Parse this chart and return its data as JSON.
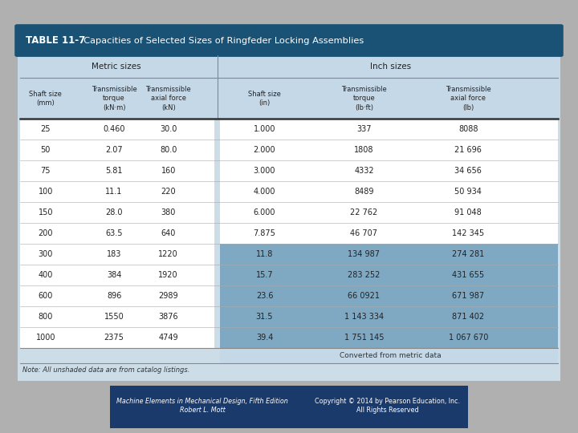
{
  "title_bold": "TABLE 11-7",
  "title_rest": "  Capacities of Selected Sizes of Ringfeder Locking Assemblies",
  "title_bg": "#1a5276",
  "title_text_color": "#ffffff",
  "table_bg": "#cddde8",
  "header_bg": "#c5d8e8",
  "row_bg_white": "#ffffff",
  "shaded_row_bg": "#7fa8c2",
  "metric_header": "Metric sizes",
  "inch_header": "Inch sizes",
  "col_headers_metric": [
    "Shaft size\n(mm)",
    "Transmissible\ntorque\n(kN·m)",
    "Transmissible\naxial force\n(kN)"
  ],
  "col_headers_inch": [
    "Shaft size\n(in)",
    "Transmissible\ntorque\n(lb·ft)",
    "Transmissible\naxial force\n(lb)"
  ],
  "metric_data": [
    [
      "25",
      "0.460",
      "30.0"
    ],
    [
      "50",
      "2.07",
      "80.0"
    ],
    [
      "75",
      "5.81",
      "160"
    ],
    [
      "100",
      "11.1",
      "220"
    ],
    [
      "150",
      "28.0",
      "380"
    ],
    [
      "200",
      "63.5",
      "640"
    ],
    [
      "300",
      "183",
      "1220"
    ],
    [
      "400",
      "384",
      "1920"
    ],
    [
      "600",
      "896",
      "2989"
    ],
    [
      "800",
      "1550",
      "3876"
    ],
    [
      "1000",
      "2375",
      "4749"
    ]
  ],
  "inch_data": [
    [
      "1.000",
      "337",
      "8088"
    ],
    [
      "2.000",
      "1808",
      "21 696"
    ],
    [
      "3.000",
      "4332",
      "34 656"
    ],
    [
      "4.000",
      "8489",
      "50 934"
    ],
    [
      "6.000",
      "22 762",
      "91 048"
    ],
    [
      "7.875",
      "46 707",
      "142 345"
    ],
    [
      "11.8",
      "134 987",
      "274 281"
    ],
    [
      "15.7",
      "283 252",
      "431 655"
    ],
    [
      "23.6",
      "66 0921",
      "671 987"
    ],
    [
      "31.5",
      "1 143 334",
      "871 402"
    ],
    [
      "39.4",
      "1 751 145",
      "1 067 670"
    ]
  ],
  "inch_shaded_rows": [
    6,
    7,
    8,
    9,
    10
  ],
  "note": "Note: All unshaded data are from catalog listings.",
  "converted_note": "Converted from metric data",
  "footer_left": "Machine Elements in Mechanical Design, Fifth Edition\nRobert L. Mott",
  "footer_right": "Copyright © 2014 by Pearson Education, Inc.\nAll Rights Reserved"
}
